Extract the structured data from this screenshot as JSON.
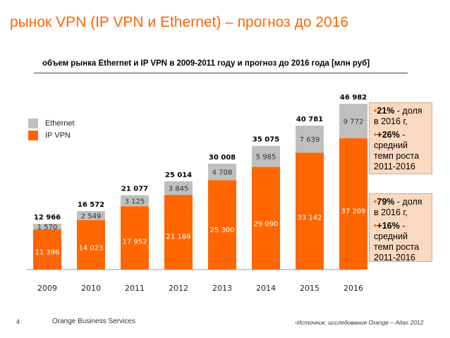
{
  "page": {
    "title": "рынок VPN (IP VPN и Ethernet) – прогноз до 2016",
    "footer_number": "4",
    "footer_brand": "Orange Business Services",
    "footer_source": "Источник: исследование Orange – Atlas 2012"
  },
  "colors": {
    "ethernet": "#bfbfbf",
    "ipvpn": "#ff6600",
    "accent": "#ff6600"
  },
  "chart_data": {
    "type": "bar",
    "stacked": true,
    "title": "объем рынка  Ethernet и IP VPN в 2009-2011 году  и прогноз до 2016 года [млн руб]",
    "categories": [
      "2009",
      "2010",
      "2011",
      "2012",
      "2013",
      "2014",
      "2015",
      "2016"
    ],
    "series": [
      {
        "name": "IP VPN",
        "values": [
          11396,
          14023,
          17952,
          21169,
          25300,
          29090,
          33142,
          37209
        ],
        "labels": [
          "11 396",
          "14 023",
          "17 952",
          "21 169",
          "25 300",
          "29 090",
          "33 142",
          "37 209"
        ]
      },
      {
        "name": "Ethernet",
        "values": [
          1570,
          2549,
          3125,
          3845,
          4708,
          5985,
          7639,
          9772
        ],
        "labels": [
          "1 570",
          "2 549",
          "3 125",
          "3 845",
          "4 708",
          "5 985",
          "7 639",
          "9 772"
        ]
      }
    ],
    "totals": [
      12966,
      16572,
      21077,
      25014,
      30008,
      35075,
      40781,
      46982
    ],
    "total_labels": [
      "12 966",
      "16 572",
      "21 077",
      "25 014",
      "30 008",
      "35 075",
      "40 781",
      "46 982"
    ],
    "legend": [
      "Ethernet",
      "IP VPN"
    ],
    "legend_position": "top-left",
    "ylim": [
      0,
      50000
    ],
    "grid": false
  },
  "callouts": {
    "ethernet": {
      "share_pct": "21%",
      "share_text": " - доля в 2016 г,",
      "growth_pct": "+26%",
      "growth_text": " - средний темп роста 2011-2016"
    },
    "ipvpn": {
      "share_pct": "79%",
      "share_text": " - доля в 2016 г,",
      "growth_pct": "+16%",
      "growth_text": " - средний темп роста 2011-2016"
    }
  }
}
